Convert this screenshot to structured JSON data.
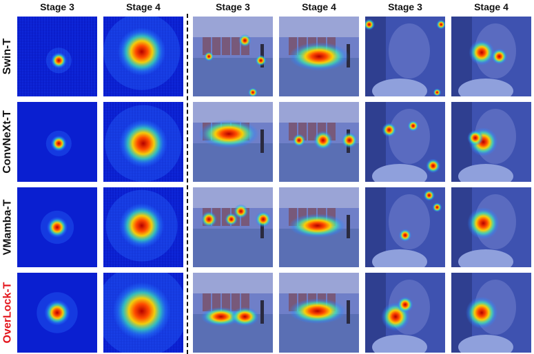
{
  "columns": [
    "Stage 3",
    "Stage 4",
    "Stage 3",
    "Stage 4",
    "Stage 3",
    "Stage 4"
  ],
  "rows": [
    {
      "label": "Swin-T",
      "highlight": false
    },
    {
      "label": "ConvNeXt-T",
      "highlight": false
    },
    {
      "label": "VMamba-T",
      "highlight": false
    },
    {
      "label": "OverLock-T",
      "highlight": true
    }
  ],
  "colors": {
    "label_default": "#111111",
    "label_highlight": "#e3141b",
    "heat_background": "#0a1fd0"
  }
}
